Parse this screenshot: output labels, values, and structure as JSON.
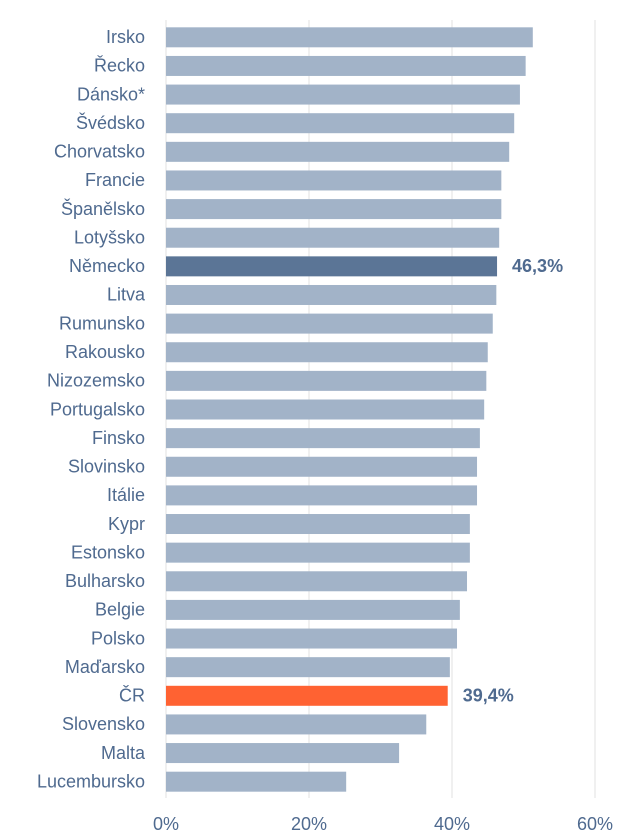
{
  "chart_data": {
    "type": "bar",
    "orientation": "horizontal",
    "categories": [
      "Irsko",
      "Řecko",
      "Dánsko*",
      "Švédsko",
      "Chorvatsko",
      "Francie",
      "Španělsko",
      "Lotyšsko",
      "Německo",
      "Litva",
      "Rumunsko",
      "Rakousko",
      "Nizozemsko",
      "Portugalsko",
      "Finsko",
      "Slovinsko",
      "Itálie",
      "Kypr",
      "Estonsko",
      "Bulharsko",
      "Belgie",
      "Polsko",
      "Maďarsko",
      "ČR",
      "Slovensko",
      "Malta",
      "Lucembursko"
    ],
    "values": [
      51.3,
      50.3,
      49.5,
      48.7,
      48.0,
      46.9,
      46.9,
      46.6,
      46.3,
      46.2,
      45.7,
      45.0,
      44.8,
      44.5,
      43.9,
      43.5,
      43.5,
      42.5,
      42.5,
      42.1,
      41.1,
      40.7,
      39.7,
      39.4,
      36.4,
      32.6,
      25.2
    ],
    "value_labels": [
      null,
      null,
      null,
      null,
      null,
      null,
      null,
      null,
      "46,3%",
      null,
      null,
      null,
      null,
      null,
      null,
      null,
      null,
      null,
      null,
      null,
      null,
      null,
      null,
      "39,4%",
      null,
      null,
      null
    ],
    "colors": [
      "#a2b3c8",
      "#a2b3c8",
      "#a2b3c8",
      "#a2b3c8",
      "#a2b3c8",
      "#a2b3c8",
      "#a2b3c8",
      "#a2b3c8",
      "#5b7596",
      "#a2b3c8",
      "#a2b3c8",
      "#a2b3c8",
      "#a2b3c8",
      "#a2b3c8",
      "#a2b3c8",
      "#a2b3c8",
      "#a2b3c8",
      "#a2b3c8",
      "#a2b3c8",
      "#a2b3c8",
      "#a2b3c8",
      "#a2b3c8",
      "#a2b3c8",
      "#ff6232",
      "#a2b3c8",
      "#a2b3c8",
      "#a2b3c8"
    ],
    "xlim": [
      0,
      60
    ],
    "xticks": [
      {
        "value": 0,
        "label": "0%"
      },
      {
        "value": 20,
        "label": "20%"
      },
      {
        "value": 40,
        "label": "40%"
      },
      {
        "value": 60,
        "label": "60%"
      }
    ],
    "grid": true
  }
}
